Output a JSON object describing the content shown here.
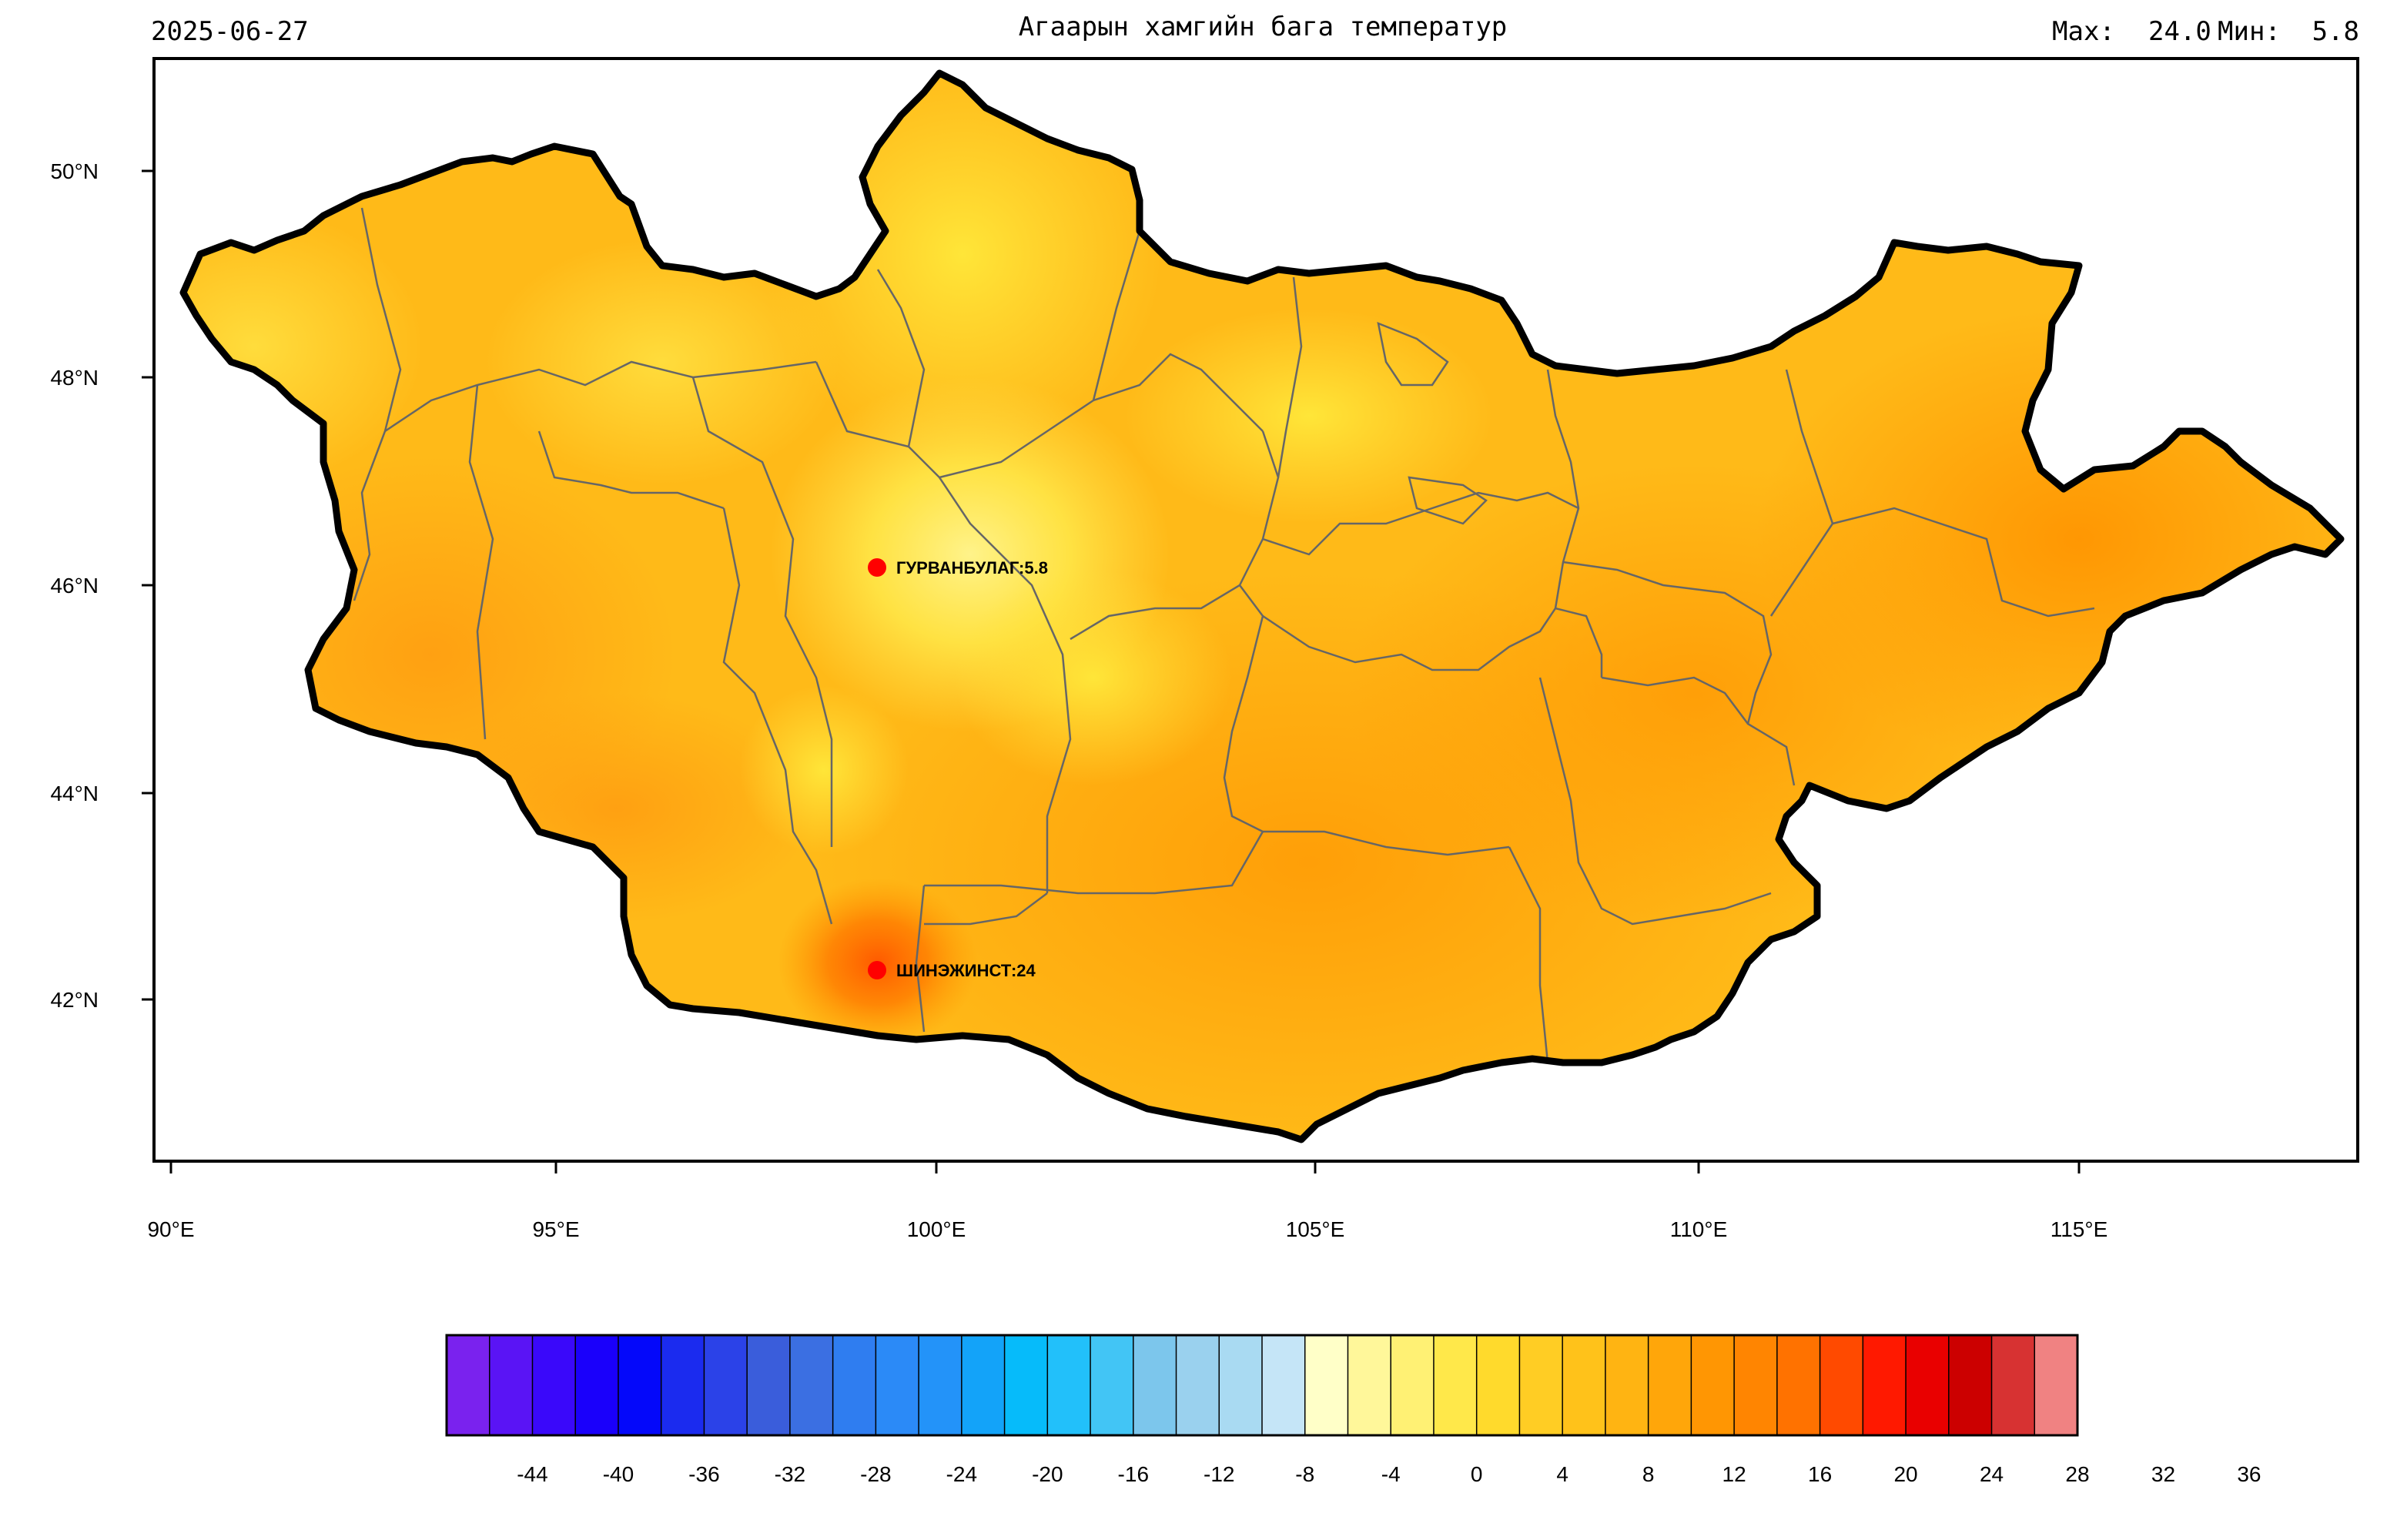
{
  "header": {
    "date": "2025-06-27",
    "title": "Агаарын хамгийн бага температур",
    "max_label": "Max:",
    "max_value": "24.0",
    "min_label": "Мин:",
    "min_value": "5.8"
  },
  "map": {
    "lat_ticks": [
      "50°N",
      "48°N",
      "46°N",
      "44°N",
      "42°N"
    ],
    "lon_ticks": [
      "90°E",
      "95°E",
      "100°E",
      "105°E",
      "110°E",
      "115°E"
    ],
    "stations": [
      {
        "name": "ГУРВАНБУЛАГ",
        "value": "5.8",
        "label": "ГУРВАНБУЛАГ:5.8",
        "color": "#ff0000"
      },
      {
        "name": "ШИНЭЖИНСТ",
        "value": "24",
        "label": "ШИНЭЖИНСТ:24",
        "color": "#ff0000"
      }
    ]
  },
  "legend": {
    "colors": [
      "#7a22ee",
      "#5a14f5",
      "#3a08fa",
      "#1a00fb",
      "#0408fa",
      "#1b2bef",
      "#2b42e8",
      "#3a5ddb",
      "#3b6fe2",
      "#2f7df0",
      "#2b8af7",
      "#2393f9",
      "#13a3f9",
      "#06bbfa",
      "#22c0fa",
      "#42c5f5",
      "#7cc6ec",
      "#9ad1ee",
      "#a9daf2",
      "#c5e5f7",
      "#ffffc8",
      "#fff79a",
      "#fff174",
      "#ffe84a",
      "#ffda2c",
      "#ffcd24",
      "#ffc21a",
      "#ffb412",
      "#ffa60a",
      "#ff9603",
      "#ff8501",
      "#ff7200",
      "#ff4a00",
      "#ff1900",
      "#e90000",
      "#cc0000",
      "#d73232",
      "#f08282"
    ],
    "tick_labels": [
      "-44",
      "-40",
      "-36",
      "-32",
      "-28",
      "-24",
      "-20",
      "-16",
      "-12",
      "-8",
      "-4",
      "0",
      "4",
      "8",
      "12",
      "16",
      "20",
      "24",
      "28",
      "32",
      "36"
    ]
  }
}
